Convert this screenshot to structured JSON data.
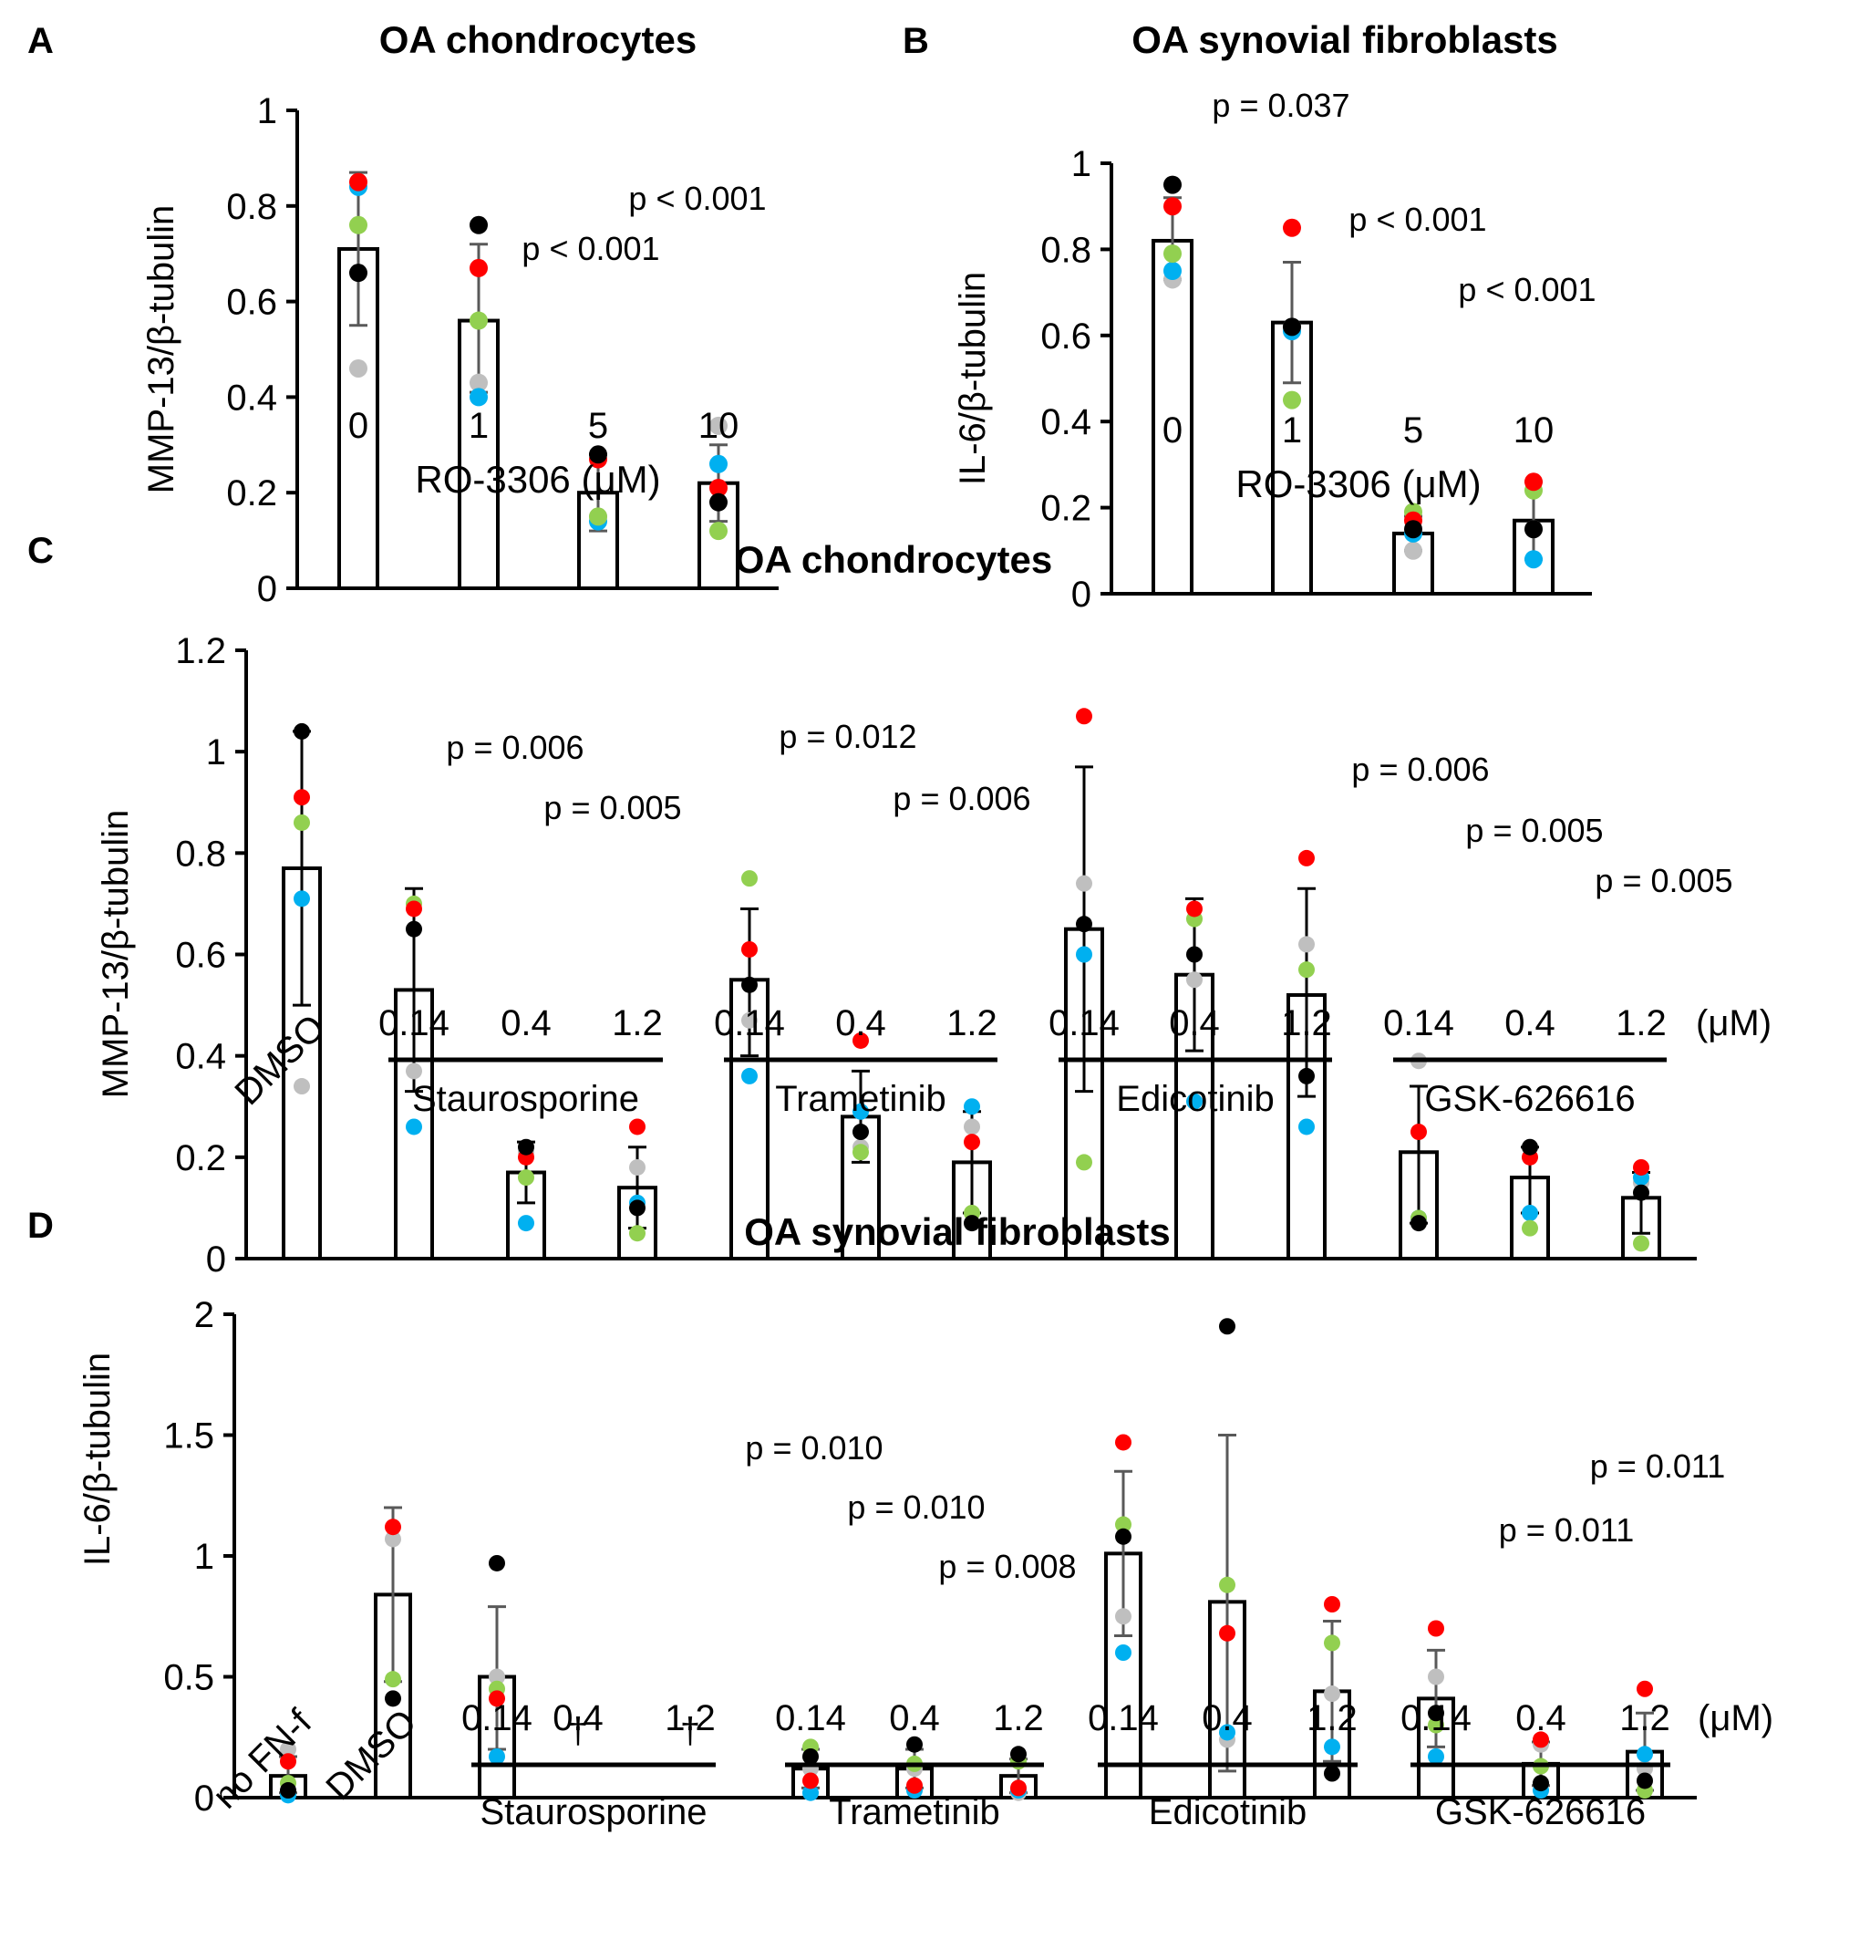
{
  "colors": {
    "black": "#000000",
    "red": "#ff0000",
    "green": "#92d050",
    "blue": "#00b0f0",
    "gray": "#bfbfbf"
  },
  "chart_data": [
    {
      "panel": "A",
      "type": "bar",
      "title": "OA chondrocytes",
      "ylabel": "MMP-13/β-tubulin",
      "xlabel": "RO-3306 (μM)",
      "ylim": [
        0,
        1
      ],
      "yticks": [
        "0",
        "0.2",
        "0.4",
        "0.6",
        "0.8",
        "1"
      ],
      "ytick_values": [
        0,
        0.2,
        0.4,
        0.6,
        0.8,
        1
      ],
      "categories": [
        "0",
        "1",
        "5",
        "10"
      ],
      "values": [
        0.71,
        0.56,
        0.2,
        0.22
      ],
      "error_low": [
        0.55,
        0.41,
        0.12,
        0.14
      ],
      "error_high": [
        0.87,
        0.72,
        0.28,
        0.3
      ],
      "points": [
        {
          "black": 0.66,
          "red": 0.85,
          "green": 0.76,
          "blue": 0.84,
          "gray": 0.46
        },
        {
          "black": 0.76,
          "red": 0.67,
          "green": 0.56,
          "blue": 0.4,
          "gray": 0.43
        },
        {
          "black": 0.28,
          "red": 0.27,
          "green": 0.15,
          "blue": 0.14,
          "gray": 0.15
        },
        {
          "black": 0.18,
          "red": 0.21,
          "green": 0.12,
          "blue": 0.26,
          "gray": 0.34
        }
      ],
      "annotations": [
        {
          "text": "p < 0.001",
          "near": "5"
        },
        {
          "text": "p < 0.001",
          "near": "10"
        }
      ]
    },
    {
      "panel": "B",
      "type": "bar",
      "title": "OA synovial fibroblasts",
      "ylabel": "IL-6/β-tubulin",
      "xlabel": "RO-3306 (μM)",
      "ylim": [
        0,
        1
      ],
      "yticks": [
        "0",
        "0.2",
        "0.4",
        "0.6",
        "0.8",
        "1"
      ],
      "ytick_values": [
        0,
        0.2,
        0.4,
        0.6,
        0.8,
        1
      ],
      "categories": [
        "0",
        "1",
        "5",
        "10"
      ],
      "values": [
        0.82,
        0.63,
        0.14,
        0.17
      ],
      "error_low": [
        0.73,
        0.49,
        0.1,
        0.08
      ],
      "error_high": [
        0.92,
        0.77,
        0.18,
        0.26
      ],
      "points": [
        {
          "black": 0.95,
          "red": 0.9,
          "green": 0.79,
          "blue": 0.75,
          "gray": 0.73
        },
        {
          "black": 0.62,
          "red": 0.85,
          "green": 0.45,
          "blue": 0.61,
          "gray": 0.62
        },
        {
          "black": 0.15,
          "red": 0.17,
          "green": 0.19,
          "blue": 0.14,
          "gray": 0.1
        },
        {
          "black": 0.15,
          "red": 0.26,
          "green": 0.24,
          "blue": 0.08,
          "gray": 0.15
        }
      ],
      "annotations": [
        {
          "text": "p = 0.037",
          "near": "1"
        },
        {
          "text": "p < 0.001",
          "near": "5"
        },
        {
          "text": "p < 0.001",
          "near": "10"
        }
      ]
    },
    {
      "panel": "C",
      "type": "bar",
      "title": "OA chondrocytes",
      "ylabel": "MMP-13/β-tubulin",
      "xlabel": "",
      "unit_label": "(μM)",
      "ylim": [
        0,
        1.2
      ],
      "yticks": [
        "0",
        "0.2",
        "0.4",
        "0.6",
        "0.8",
        "1",
        "1.2"
      ],
      "ytick_values": [
        0,
        0.2,
        0.4,
        0.6,
        0.8,
        1,
        1.2
      ],
      "categories": [
        "DMSO",
        "0.14",
        "0.4",
        "1.2",
        "0.14",
        "0.4",
        "1.2",
        "0.14",
        "0.4",
        "1.2",
        "0.14",
        "0.4",
        "1.2"
      ],
      "groups": [
        {
          "name": "Staurosporine",
          "span": [
            1,
            3
          ]
        },
        {
          "name": "Trametinib",
          "span": [
            4,
            6
          ]
        },
        {
          "name": "Edicotinib",
          "span": [
            7,
            9
          ]
        },
        {
          "name": "GSK-626616",
          "span": [
            10,
            12
          ]
        }
      ],
      "values": [
        0.77,
        0.53,
        0.17,
        0.14,
        0.55,
        0.28,
        0.19,
        0.65,
        0.56,
        0.52,
        0.21,
        0.16,
        0.12
      ],
      "error_low": [
        0.5,
        0.33,
        0.11,
        0.06,
        0.4,
        0.19,
        0.09,
        0.33,
        0.41,
        0.32,
        0.07,
        0.09,
        0.05
      ],
      "error_high": [
        1.04,
        0.73,
        0.23,
        0.22,
        0.69,
        0.37,
        0.29,
        0.97,
        0.71,
        0.73,
        0.34,
        0.22,
        0.17
      ],
      "points": [
        {
          "black": 1.04,
          "red": 0.91,
          "green": 0.86,
          "blue": 0.71,
          "gray": 0.34
        },
        {
          "black": 0.65,
          "red": 0.69,
          "green": 0.7,
          "blue": 0.26,
          "gray": 0.37
        },
        {
          "black": 0.22,
          "red": 0.2,
          "green": 0.16,
          "blue": 0.07,
          "gray": 0.21
        },
        {
          "black": 0.1,
          "red": 0.26,
          "green": 0.05,
          "blue": 0.11,
          "gray": 0.18
        },
        {
          "black": 0.54,
          "red": 0.61,
          "green": 0.75,
          "blue": 0.36,
          "gray": 0.47
        },
        {
          "black": 0.25,
          "red": 0.43,
          "green": 0.21,
          "blue": 0.29,
          "gray": 0.22
        },
        {
          "black": 0.07,
          "red": 0.23,
          "green": 0.09,
          "blue": 0.3,
          "gray": 0.26
        },
        {
          "black": 0.66,
          "red": 1.07,
          "green": 0.19,
          "blue": 0.6,
          "gray": 0.74
        },
        {
          "black": 0.6,
          "red": 0.69,
          "green": 0.67,
          "blue": 0.31,
          "gray": 0.55
        },
        {
          "black": 0.36,
          "red": 0.79,
          "green": 0.57,
          "blue": 0.26,
          "gray": 0.62
        },
        {
          "black": 0.07,
          "red": 0.25,
          "green": 0.08,
          "blue": 0.08,
          "gray": 0.39
        },
        {
          "black": 0.22,
          "red": 0.2,
          "green": 0.06,
          "blue": 0.09,
          "gray": 0.22
        },
        {
          "black": 0.13,
          "red": 0.18,
          "green": 0.03,
          "blue": 0.16,
          "gray": 0.15
        }
      ],
      "annotations": [
        {
          "text": "p = 0.006",
          "near": 1
        },
        {
          "text": "p = 0.005",
          "near": 3
        },
        {
          "text": "p = 0.012",
          "near": 4
        },
        {
          "text": "p = 0.006",
          "near": 6
        },
        {
          "text": "p = 0.006",
          "near": 9
        },
        {
          "text": "p = 0.005",
          "near": 11
        },
        {
          "text": "p = 0.005",
          "near": 12
        }
      ]
    },
    {
      "panel": "D",
      "type": "bar",
      "title": "OA synovial fibroblasts",
      "ylabel": "IL-6/β-tubulin",
      "xlabel": "",
      "unit_label": "(μM)",
      "ylim": [
        0,
        2
      ],
      "yticks": [
        "0",
        "0.5",
        "1",
        "1.5",
        "2"
      ],
      "ytick_values": [
        0,
        0.5,
        1,
        1.5,
        2
      ],
      "categories": [
        "no FN-f",
        "DMSO",
        "0.14",
        "0.4",
        "1.2",
        "0.14",
        "0.4",
        "1.2",
        "0.14",
        "0.4",
        "1.2",
        "0.14",
        "0.4",
        "1.2"
      ],
      "groups": [
        {
          "name": "Staurosporine",
          "span": [
            2,
            4
          ]
        },
        {
          "name": "Trametinib",
          "span": [
            5,
            7
          ]
        },
        {
          "name": "Edicotinib",
          "span": [
            8,
            10
          ]
        },
        {
          "name": "GSK-626616",
          "span": [
            11,
            13
          ]
        }
      ],
      "values": [
        0.09,
        0.84,
        0.5,
        null,
        null,
        0.12,
        0.12,
        0.09,
        1.01,
        0.81,
        0.44,
        0.41,
        0.14,
        0.19
      ],
      "error_low": [
        0.02,
        0.48,
        0.2,
        null,
        null,
        0.04,
        0.04,
        0.02,
        0.67,
        0.11,
        0.15,
        0.21,
        0.05,
        0.03
      ],
      "error_high": [
        0.17,
        1.2,
        0.79,
        null,
        null,
        0.2,
        0.2,
        0.16,
        1.35,
        1.5,
        0.73,
        0.61,
        0.23,
        0.35
      ],
      "markers": [
        null,
        null,
        null,
        "†",
        "†",
        null,
        null,
        null,
        null,
        null,
        null,
        null,
        null,
        null
      ],
      "points": [
        {
          "black": 0.03,
          "red": 0.15,
          "green": 0.06,
          "blue": 0.01,
          "gray": 0.2
        },
        {
          "black": 0.41,
          "red": 1.12,
          "green": 0.49,
          "blue": null,
          "gray": 1.07
        },
        {
          "black": 0.97,
          "red": 0.41,
          "green": 0.45,
          "blue": 0.17,
          "gray": 0.5
        },
        null,
        null,
        {
          "black": 0.17,
          "red": 0.07,
          "green": 0.21,
          "blue": 0.02,
          "gray": 0.12
        },
        {
          "black": 0.22,
          "red": 0.05,
          "green": 0.14,
          "blue": 0.03,
          "gray": 0.12
        },
        {
          "black": 0.18,
          "red": 0.04,
          "green": 0.15,
          "blue": 0.03,
          "gray": 0.02
        },
        {
          "black": 1.08,
          "red": 1.47,
          "green": 1.13,
          "blue": 0.6,
          "gray": 0.75
        },
        {
          "black": 1.95,
          "red": 0.68,
          "green": 0.88,
          "blue": 0.27,
          "gray": 0.24
        },
        {
          "black": 0.1,
          "red": 0.8,
          "green": 0.64,
          "blue": 0.21,
          "gray": 0.43
        },
        {
          "black": 0.35,
          "red": 0.7,
          "green": 0.3,
          "blue": 0.17,
          "gray": 0.5
        },
        {
          "black": 0.06,
          "red": 0.24,
          "green": 0.13,
          "blue": 0.03,
          "gray": 0.22
        },
        {
          "black": 0.07,
          "red": 0.45,
          "green": 0.03,
          "blue": 0.18,
          "gray": 0.12
        }
      ],
      "annotations": [
        {
          "text": "p = 0.010",
          "near": 5
        },
        {
          "text": "p = 0.010",
          "near": 6
        },
        {
          "text": "p = 0.008",
          "near": 7
        },
        {
          "text": "p = 0.011",
          "near": 12
        },
        {
          "text": "p = 0.011",
          "near": 13
        }
      ]
    }
  ]
}
